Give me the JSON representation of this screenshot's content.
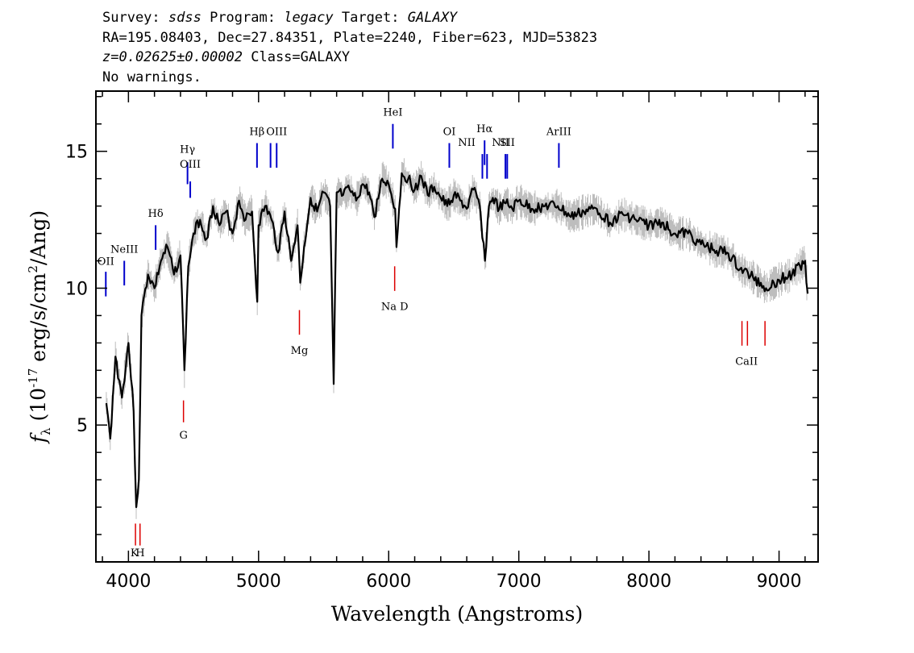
{
  "header": {
    "line1": {
      "survey_label": "Survey: ",
      "survey": "sdss",
      "program_label": " Program: ",
      "program": "legacy",
      "target_label": " Target: ",
      "target": "GALAXY"
    },
    "line2": "RA=195.08403, Dec=27.84351, Plate=2240, Fiber=623, MJD=53823",
    "line3": {
      "redshift": "z=0.02625±0.00002",
      "class_text": " Class=GALAXY"
    },
    "line4": "No warnings."
  },
  "chart_data": {
    "type": "line",
    "xlabel": "Wavelength (Angstroms)",
    "ylabel": "f_λ (10^-17 erg/s/cm^2/Ang)",
    "xlim": [
      3750,
      9300
    ],
    "ylim": [
      0.0,
      17.2
    ],
    "xticks": [
      4000,
      5000,
      6000,
      7000,
      8000,
      9000
    ],
    "yticks": [
      5,
      10,
      15
    ],
    "series": [
      {
        "style": "flux",
        "color": "#000000",
        "x": [
          3830,
          3860,
          3900,
          3950,
          4000,
          4040,
          4060,
          4080,
          4100,
          4150,
          4200,
          4250,
          4300,
          4350,
          4400,
          4430,
          4460,
          4500,
          4550,
          4600,
          4650,
          4700,
          4750,
          4800,
          4850,
          4900,
          4950,
          4990,
          5000,
          5050,
          5100,
          5150,
          5200,
          5250,
          5300,
          5320,
          5350,
          5400,
          5450,
          5500,
          5550,
          5577,
          5600,
          5650,
          5700,
          5750,
          5800,
          5850,
          5890,
          5950,
          6000,
          6050,
          6060,
          6100,
          6150,
          6200,
          6250,
          6300,
          6350,
          6400,
          6450,
          6500,
          6550,
          6600,
          6650,
          6700,
          6740,
          6770,
          6800,
          6850,
          6900,
          6950,
          7000,
          7100,
          7200,
          7300,
          7400,
          7500,
          7600,
          7700,
          7800,
          7900,
          8000,
          8100,
          8200,
          8300,
          8400,
          8500,
          8600,
          8700,
          8800,
          8900,
          9000,
          9100,
          9200,
          9220
        ],
        "y": [
          5.8,
          4.5,
          7.5,
          6.0,
          8.0,
          5.5,
          2.0,
          3.0,
          9.0,
          10.5,
          10.0,
          11.0,
          11.5,
          10.5,
          11.2,
          7.0,
          10.8,
          12.0,
          12.5,
          11.8,
          13.0,
          12.3,
          12.8,
          12.0,
          13.2,
          12.5,
          12.8,
          9.5,
          12.3,
          13.0,
          12.5,
          11.3,
          12.8,
          11.0,
          12.3,
          10.2,
          11.5,
          13.3,
          12.8,
          13.5,
          13.0,
          6.5,
          13.5,
          13.4,
          13.6,
          13.2,
          13.8,
          13.5,
          12.6,
          14.0,
          13.8,
          12.9,
          11.5,
          14.2,
          14.0,
          13.6,
          14.1,
          13.4,
          13.7,
          13.3,
          13.0,
          13.4,
          13.2,
          12.9,
          13.6,
          13.0,
          11.0,
          13.0,
          13.3,
          12.9,
          13.1,
          12.9,
          13.2,
          12.9,
          13.0,
          13.0,
          12.6,
          12.8,
          12.9,
          12.4,
          12.7,
          12.5,
          12.3,
          12.4,
          12.0,
          12.0,
          11.6,
          11.4,
          11.3,
          10.7,
          10.4,
          10.0,
          10.3,
          10.5,
          11.0,
          9.8
        ]
      }
    ],
    "emission_lines": [
      {
        "label": "OII",
        "wavelength": 3826,
        "y_top": 10.6,
        "y_bottom": 9.7
      },
      {
        "label": "NeIII",
        "wavelength": 3968,
        "y_top": 11.0,
        "y_bottom": 10.1
      },
      {
        "label": "Hδ",
        "wavelength": 4209,
        "y_top": 12.3,
        "y_bottom": 11.4
      },
      {
        "label": "Hγ",
        "wavelength": 4454,
        "y_top": 14.6,
        "y_bottom": 13.8
      },
      {
        "label": "OIII",
        "wavelength": 4475,
        "y_top": 13.9,
        "y_bottom": 13.3
      },
      {
        "label": "Hβ",
        "wavelength": 4988,
        "y_top": 15.3,
        "y_bottom": 14.4
      },
      {
        "label": "OIII",
        "wavelength": 5092,
        "y_top": 15.3,
        "y_bottom": 14.4
      },
      {
        "label": "OIII",
        "wavelength": 5139,
        "y_top": 15.3,
        "y_bottom": 14.4
      },
      {
        "label": "HeI",
        "wavelength": 6032,
        "y_top": 16.0,
        "y_bottom": 15.1
      },
      {
        "label": "OI",
        "wavelength": 6466,
        "y_top": 15.3,
        "y_bottom": 14.4
      },
      {
        "label": "NII",
        "wavelength": 6720,
        "y_top": 14.9,
        "y_bottom": 14.0
      },
      {
        "label": "Hα",
        "wavelength": 6737,
        "y_top": 15.4,
        "y_bottom": 14.5
      },
      {
        "label": "NII",
        "wavelength": 6756,
        "y_top": 14.9,
        "y_bottom": 14.0
      },
      {
        "label": "SII",
        "wavelength": 6897,
        "y_top": 14.9,
        "y_bottom": 14.0
      },
      {
        "label": "SII",
        "wavelength": 6911,
        "y_top": 14.9,
        "y_bottom": 14.0
      },
      {
        "label": "ArIII",
        "wavelength": 7308,
        "y_top": 15.3,
        "y_bottom": 14.4
      }
    ],
    "absorption_lines": [
      {
        "label": "K",
        "wavelength": 4054,
        "y_top": 1.4,
        "y_bottom": 0.6
      },
      {
        "label": "H",
        "wavelength": 4089,
        "y_top": 1.4,
        "y_bottom": 0.6
      },
      {
        "label": "G",
        "wavelength": 4423,
        "y_top": 5.9,
        "y_bottom": 5.1
      },
      {
        "label": "Mg",
        "wavelength": 5314,
        "y_top": 9.2,
        "y_bottom": 8.3
      },
      {
        "label": "Na D",
        "wavelength": 6046,
        "y_top": 10.8,
        "y_bottom": 9.9
      },
      {
        "label": "CaII",
        "wavelength": 8715,
        "y_top": 8.8,
        "y_bottom": 7.9
      },
      {
        "label": "CaII",
        "wavelength": 8757,
        "y_top": 8.8,
        "y_bottom": 7.9
      },
      {
        "label": "CaII",
        "wavelength": 8892,
        "y_top": 8.8,
        "y_bottom": 7.9
      }
    ],
    "line_labels": [
      {
        "text": "OII",
        "wavelength": 3826,
        "y": 10.85
      },
      {
        "text": "NeIII",
        "wavelength": 3968,
        "y": 11.3
      },
      {
        "text": "Hδ",
        "wavelength": 4209,
        "y": 12.6
      },
      {
        "text": "Hγ",
        "wavelength": 4454,
        "y": 14.95
      },
      {
        "text": "OIII",
        "wavelength": 4475,
        "y": 14.4
      },
      {
        "text": "Hβ",
        "wavelength": 4988,
        "y": 15.6
      },
      {
        "text": "OIII",
        "wavelength": 5139,
        "y": 15.6
      },
      {
        "text": "HeI",
        "wavelength": 6032,
        "y": 16.3
      },
      {
        "text": "OI",
        "wavelength": 6466,
        "y": 15.6
      },
      {
        "text": "NII",
        "wavelength": 6600,
        "y": 15.2
      },
      {
        "text": "Hα",
        "wavelength": 6737,
        "y": 15.7
      },
      {
        "text": "NII",
        "wavelength": 6860,
        "y": 15.2
      },
      {
        "text": "SII",
        "wavelength": 6911,
        "y": 15.2
      },
      {
        "text": "ArIII",
        "wavelength": 7308,
        "y": 15.6
      },
      {
        "text": "K",
        "wavelength": 4046,
        "y": 0.2
      },
      {
        "text": "H",
        "wavelength": 4090,
        "y": 0.2
      },
      {
        "text": "G",
        "wavelength": 4423,
        "y": 4.5
      },
      {
        "text": "Mg",
        "wavelength": 5314,
        "y": 7.6
      },
      {
        "text": "Na D",
        "wavelength": 6046,
        "y": 9.2
      },
      {
        "text": "CaII",
        "wavelength": 8750,
        "y": 7.2
      }
    ],
    "colors": {
      "flux": "#000000",
      "error_band": "#bdbdbd",
      "emission_marker": "#0000cc",
      "absorption_marker": "#dd0000"
    },
    "grid": false,
    "legend": "none"
  }
}
